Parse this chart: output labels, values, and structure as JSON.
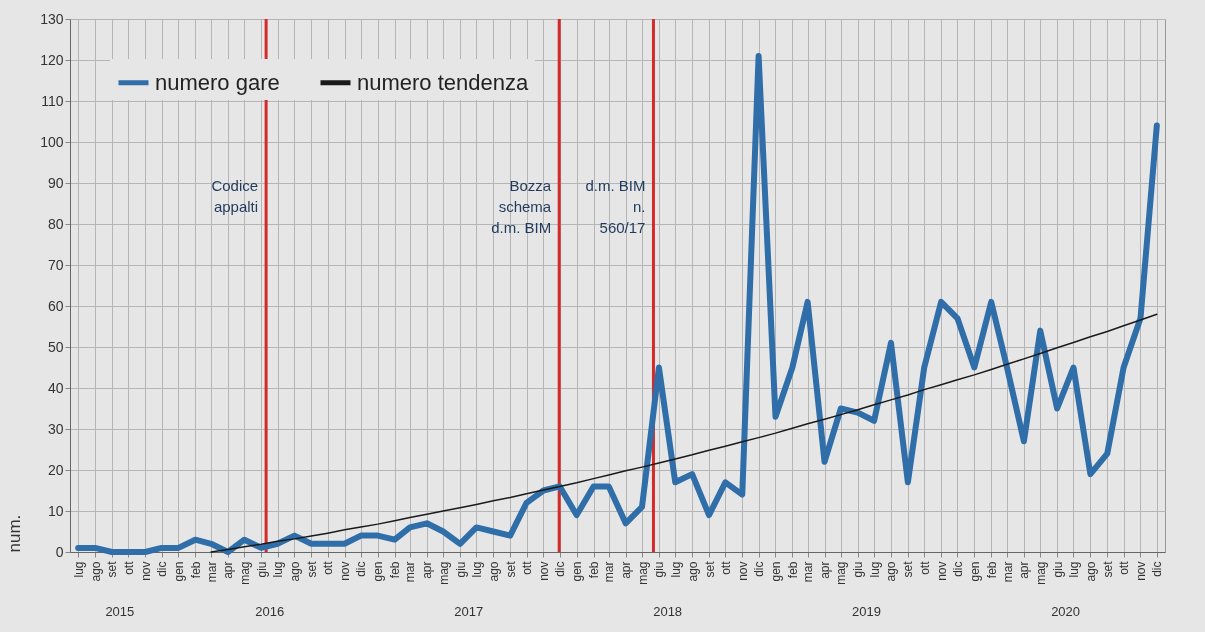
{
  "chart_data": {
    "type": "line",
    "ylabel": "num.",
    "x": [
      "2015-07",
      "2015-08",
      "2015-09",
      "2015-10",
      "2015-11",
      "2015-12",
      "2016-01",
      "2016-02",
      "2016-03",
      "2016-04",
      "2016-05",
      "2016-06",
      "2016-07",
      "2016-08",
      "2016-09",
      "2016-10",
      "2016-11",
      "2016-12",
      "2017-01",
      "2017-02",
      "2017-03",
      "2017-04",
      "2017-05",
      "2017-06",
      "2017-07",
      "2017-08",
      "2017-09",
      "2017-10",
      "2017-11",
      "2017-12",
      "2018-01",
      "2018-02",
      "2018-03",
      "2018-04",
      "2018-05",
      "2018-06",
      "2018-07",
      "2018-08",
      "2018-09",
      "2018-10",
      "2018-11",
      "2018-12",
      "2019-01",
      "2019-02",
      "2019-03",
      "2019-04",
      "2019-05",
      "2019-06",
      "2019-07",
      "2019-08",
      "2019-09",
      "2019-10",
      "2019-11",
      "2019-12",
      "2020-01",
      "2020-02",
      "2020-03",
      "2020-04",
      "2020-05",
      "2020-06",
      "2020-07",
      "2020-08",
      "2020-09",
      "2020-10",
      "2020-11",
      "2020-12"
    ],
    "series": [
      {
        "name": "numero gare",
        "color": "#2f6ea8",
        "values": [
          1,
          1,
          0,
          0,
          0,
          1,
          1,
          3,
          2,
          0,
          3,
          1,
          2,
          4,
          2,
          2,
          2,
          4,
          4,
          3,
          6,
          7,
          5,
          2,
          6,
          5,
          4,
          12,
          15,
          16,
          9,
          16,
          16,
          7,
          11,
          45,
          17,
          19,
          9,
          17,
          14,
          121,
          33,
          45,
          61,
          22,
          35,
          34,
          32,
          51,
          17,
          45,
          61,
          57,
          45,
          61,
          45,
          27,
          54,
          35,
          45,
          19,
          24,
          45,
          57,
          104
        ]
      },
      {
        "name": "numero tendenza",
        "color": "#1a1a1a",
        "values": [
          null,
          null,
          null,
          null,
          null,
          null,
          null,
          null,
          0,
          0.6,
          1.3,
          1.9,
          2.6,
          3.2,
          3.9,
          4.6,
          5.4,
          6.1,
          6.8,
          7.6,
          8.4,
          9.2,
          10,
          10.8,
          11.6,
          12.5,
          13.3,
          14.2,
          15.1,
          16,
          16.9,
          17.9,
          18.8,
          19.8,
          20.7,
          21.7,
          22.7,
          23.7,
          24.8,
          25.8,
          26.9,
          27.9,
          29,
          30.2,
          31.3,
          32.4,
          33.5,
          34.7,
          35.9,
          37.1,
          38.3,
          39.6,
          40.8,
          42,
          43.2,
          44.5,
          45.8,
          47.1,
          48.4,
          49.8,
          51.1,
          52.5,
          53.8,
          55.2,
          56.6,
          58
        ]
      }
    ],
    "xlim": [
      "2015-06-16",
      "2020-12-16"
    ],
    "xticks": [
      {
        "value": "2015-07",
        "label": "lug"
      },
      {
        "value": "2015-08",
        "label": "ago"
      },
      {
        "value": "2015-09",
        "label": "set"
      },
      {
        "value": "2015-10",
        "label": "ott"
      },
      {
        "value": "2015-11",
        "label": "nov"
      },
      {
        "value": "2015-12",
        "label": "dic"
      },
      {
        "value": "2016-01",
        "label": "gen"
      },
      {
        "value": "2016-02",
        "label": "feb"
      },
      {
        "value": "2016-03",
        "label": "mar"
      },
      {
        "value": "2016-04",
        "label": "apr"
      },
      {
        "value": "2016-05",
        "label": "mag"
      },
      {
        "value": "2016-06",
        "label": "giu"
      },
      {
        "value": "2016-07",
        "label": "lug"
      },
      {
        "value": "2016-08",
        "label": "ago"
      },
      {
        "value": "2016-09",
        "label": "set"
      },
      {
        "value": "2016-10",
        "label": "ott"
      },
      {
        "value": "2016-11",
        "label": "nov"
      },
      {
        "value": "2016-12",
        "label": "dic"
      },
      {
        "value": "2017-01",
        "label": "gen"
      },
      {
        "value": "2017-02",
        "label": "feb"
      },
      {
        "value": "2017-03",
        "label": "mar"
      },
      {
        "value": "2017-04",
        "label": "apr"
      },
      {
        "value": "2017-05",
        "label": "mag"
      },
      {
        "value": "2017-06",
        "label": "giu"
      },
      {
        "value": "2017-07",
        "label": "lug"
      },
      {
        "value": "2017-08",
        "label": "ago"
      },
      {
        "value": "2017-09",
        "label": "set"
      },
      {
        "value": "2017-10",
        "label": "ott"
      },
      {
        "value": "2017-11",
        "label": "nov"
      },
      {
        "value": "2017-12",
        "label": "dic"
      },
      {
        "value": "2018-01",
        "label": "gen"
      },
      {
        "value": "2018-02",
        "label": "feb"
      },
      {
        "value": "2018-03",
        "label": "mar"
      },
      {
        "value": "2018-04",
        "label": "apr"
      },
      {
        "value": "2018-05",
        "label": "mag"
      },
      {
        "value": "2018-06",
        "label": "giu"
      },
      {
        "value": "2018-07",
        "label": "lug"
      },
      {
        "value": "2018-08",
        "label": "ago"
      },
      {
        "value": "2018-09",
        "label": "set"
      },
      {
        "value": "2018-10",
        "label": "ott"
      },
      {
        "value": "2018-11",
        "label": "nov"
      },
      {
        "value": "2018-12",
        "label": "dic"
      },
      {
        "value": "2019-01",
        "label": "gen"
      },
      {
        "value": "2019-02",
        "label": "feb"
      },
      {
        "value": "2019-03",
        "label": "mar"
      },
      {
        "value": "2019-04",
        "label": "apr"
      },
      {
        "value": "2019-05",
        "label": "mag"
      },
      {
        "value": "2019-06",
        "label": "giu"
      },
      {
        "value": "2019-07",
        "label": "lug"
      },
      {
        "value": "2019-08",
        "label": "ago"
      },
      {
        "value": "2019-09",
        "label": "set"
      },
      {
        "value": "2019-10",
        "label": "ott"
      },
      {
        "value": "2019-11",
        "label": "nov"
      },
      {
        "value": "2019-12",
        "label": "dic"
      },
      {
        "value": "2020-01",
        "label": "gen"
      },
      {
        "value": "2020-02",
        "label": "feb"
      },
      {
        "value": "2020-03",
        "label": "mar"
      },
      {
        "value": "2020-04",
        "label": "apr"
      },
      {
        "value": "2020-05",
        "label": "mag"
      },
      {
        "value": "2020-06",
        "label": "giu"
      },
      {
        "value": "2020-07",
        "label": "lug"
      },
      {
        "value": "2020-08",
        "label": "ago"
      },
      {
        "value": "2020-09",
        "label": "set"
      },
      {
        "value": "2020-10",
        "label": "ott"
      },
      {
        "value": "2020-11",
        "label": "nov"
      },
      {
        "value": "2020-12",
        "label": "dic"
      }
    ],
    "ylim": [
      0,
      130
    ],
    "yticks": [
      0,
      10,
      20,
      30,
      40,
      50,
      60,
      70,
      80,
      90,
      100,
      110,
      120,
      130
    ],
    "grid": true,
    "legend": "top left",
    "marker": "none",
    "line_style": "solid",
    "ref_lines": [
      {
        "axis": "x",
        "value": "2016-06-10",
        "color": "#d42a2a",
        "label": "Codice\nappalti"
      },
      {
        "axis": "x",
        "value": "2017-11-30",
        "color": "#d42a2a",
        "label": "Bozza\nschema\nd.m. BIM"
      },
      {
        "axis": "x",
        "value": "2018-05-22",
        "color": "#d42a2a",
        "label": "d.m. BIM\nn.\n560/17"
      }
    ],
    "annotations": [
      "2015",
      "2016",
      "2017",
      "2018",
      "2019",
      "2020"
    ]
  }
}
